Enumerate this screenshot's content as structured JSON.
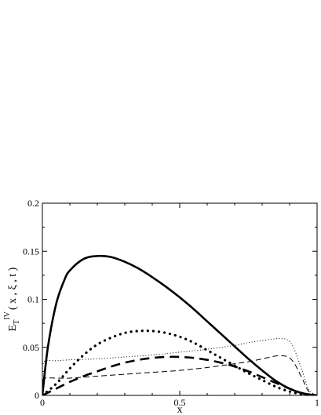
{
  "chart_data": {
    "type": "line",
    "xlabel": "x",
    "ylabel": {
      "base": "E",
      "sub": "T",
      "sup": "IV",
      "args": "( x , ξ , t )"
    },
    "xlim": [
      0,
      1
    ],
    "ylim": [
      0,
      0.2
    ],
    "x_ticks": [
      0,
      0.5,
      1
    ],
    "x_tick_labels": [
      "0",
      "0.5",
      "1"
    ],
    "y_ticks": [
      0,
      0.05,
      0.1,
      0.15,
      0.2
    ],
    "y_tick_labels": [
      "0",
      "0.05",
      "0.1",
      "0.15",
      "0.2"
    ],
    "grid": false,
    "legend": "none",
    "series": [
      {
        "style": "solid-thick",
        "x": [
          0,
          0.02,
          0.05,
          0.08,
          0.1,
          0.15,
          0.2,
          0.25,
          0.3,
          0.35,
          0.4,
          0.45,
          0.5,
          0.55,
          0.6,
          0.65,
          0.7,
          0.75,
          0.8,
          0.85,
          0.9,
          0.95,
          1.0
        ],
        "y": [
          0,
          0.05,
          0.095,
          0.12,
          0.13,
          0.142,
          0.145,
          0.144,
          0.139,
          0.132,
          0.123,
          0.113,
          0.102,
          0.09,
          0.077,
          0.064,
          0.051,
          0.038,
          0.026,
          0.015,
          0.007,
          0.002,
          0
        ]
      },
      {
        "style": "dotted-thick",
        "x": [
          0,
          0.05,
          0.1,
          0.15,
          0.2,
          0.25,
          0.3,
          0.35,
          0.4,
          0.45,
          0.5,
          0.55,
          0.6,
          0.65,
          0.7,
          0.75,
          0.8,
          0.85,
          0.9,
          0.95,
          1.0
        ],
        "y": [
          0,
          0.012,
          0.028,
          0.042,
          0.053,
          0.06,
          0.065,
          0.067,
          0.067,
          0.065,
          0.061,
          0.055,
          0.047,
          0.039,
          0.031,
          0.023,
          0.016,
          0.009,
          0.004,
          0.001,
          0
        ]
      },
      {
        "style": "dashed-thick",
        "x": [
          0,
          0.05,
          0.1,
          0.15,
          0.2,
          0.25,
          0.3,
          0.35,
          0.4,
          0.45,
          0.5,
          0.55,
          0.6,
          0.65,
          0.7,
          0.75,
          0.8,
          0.85,
          0.9,
          0.95,
          1.0
        ],
        "y": [
          0,
          0.007,
          0.014,
          0.02,
          0.025,
          0.03,
          0.034,
          0.037,
          0.039,
          0.04,
          0.04,
          0.039,
          0.037,
          0.034,
          0.03,
          0.025,
          0.019,
          0.013,
          0.007,
          0.002,
          0
        ]
      },
      {
        "style": "dotted-thin",
        "x": [
          0,
          0.01,
          0.05,
          0.1,
          0.2,
          0.3,
          0.4,
          0.5,
          0.6,
          0.7,
          0.75,
          0.8,
          0.85,
          0.88,
          0.9,
          0.92,
          0.95,
          0.97,
          1.0
        ],
        "y": [
          0.03,
          0.036,
          0.036,
          0.037,
          0.038,
          0.04,
          0.042,
          0.045,
          0.048,
          0.052,
          0.055,
          0.057,
          0.059,
          0.059,
          0.056,
          0.046,
          0.022,
          0.006,
          0
        ]
      },
      {
        "style": "dashed-thin",
        "x": [
          0,
          0.01,
          0.05,
          0.1,
          0.2,
          0.3,
          0.4,
          0.5,
          0.6,
          0.7,
          0.75,
          0.8,
          0.85,
          0.88,
          0.9,
          0.92,
          0.95,
          0.97,
          1.0
        ],
        "y": [
          0.015,
          0.018,
          0.018,
          0.018,
          0.02,
          0.022,
          0.024,
          0.026,
          0.029,
          0.033,
          0.035,
          0.038,
          0.041,
          0.041,
          0.039,
          0.032,
          0.015,
          0.004,
          0
        ]
      }
    ]
  }
}
